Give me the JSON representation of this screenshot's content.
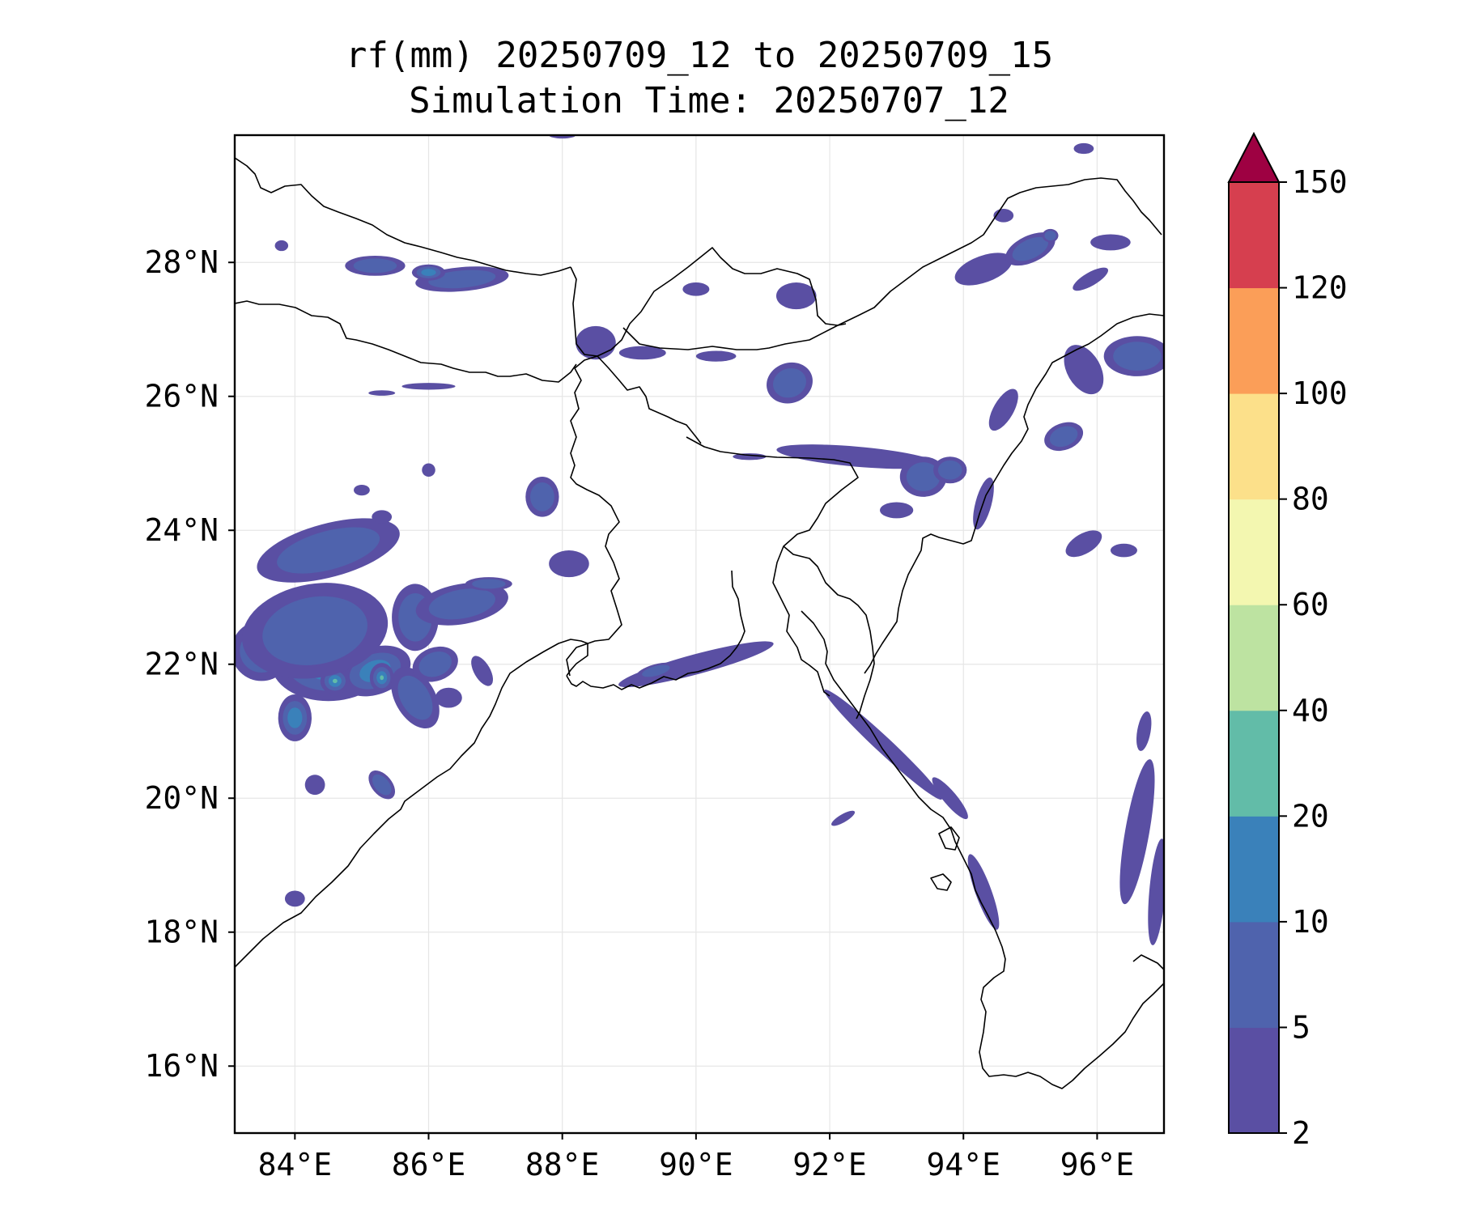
{
  "map": {
    "title_line1": "rf(mm) 20250709_12 to 20250709_15",
    "title_line2": "Simulation Time: 20250707_12",
    "lon_range": [
      83.1,
      97.0
    ],
    "lat_range": [
      15.0,
      29.9
    ],
    "lon_ticks": [
      {
        "value": 84,
        "label": "84°E"
      },
      {
        "value": 86,
        "label": "86°E"
      },
      {
        "value": 88,
        "label": "88°E"
      },
      {
        "value": 90,
        "label": "90°E"
      },
      {
        "value": 92,
        "label": "92°E"
      },
      {
        "value": 94,
        "label": "94°E"
      },
      {
        "value": 96,
        "label": "96°E"
      }
    ],
    "lat_ticks": [
      {
        "value": 16,
        "label": "16°N"
      },
      {
        "value": 18,
        "label": "18°N"
      },
      {
        "value": 20,
        "label": "20°N"
      },
      {
        "value": 22,
        "label": "22°N"
      },
      {
        "value": 24,
        "label": "24°N"
      },
      {
        "value": 26,
        "label": "26°N"
      },
      {
        "value": 28,
        "label": "28°N"
      }
    ],
    "gridlines": true,
    "colorbar": {
      "levels": [
        2,
        5,
        10,
        20,
        40,
        60,
        80,
        100,
        120,
        150
      ],
      "labels": [
        "2",
        "5",
        "10",
        "20",
        "40",
        "60",
        "80",
        "100",
        "120",
        "150"
      ],
      "colors": [
        "#5a4fa3",
        "#4f63ad",
        "#3a81ba",
        "#62bca8",
        "#bde3a1",
        "#f3f7b0",
        "#fce08a",
        "#fb9e58",
        "#d63f4f"
      ],
      "extend_color": "#9e0142",
      "extend": "max"
    },
    "rain_cells": [
      {
        "lon": 84.5,
        "lat": 22.0,
        "rx": 0.85,
        "ry": 0.55,
        "rot": 0,
        "level": 2
      },
      {
        "lon": 83.5,
        "lat": 22.2,
        "rx": 0.45,
        "ry": 0.45,
        "rot": 0,
        "level": 2
      },
      {
        "lon": 85.2,
        "lat": 21.9,
        "rx": 0.55,
        "ry": 0.35,
        "rot": -20,
        "level": 2
      },
      {
        "lon": 84.6,
        "lat": 21.75,
        "rx": 0.22,
        "ry": 0.2,
        "rot": 0,
        "level": 4
      },
      {
        "lon": 85.3,
        "lat": 21.8,
        "rx": 0.18,
        "ry": 0.22,
        "rot": 0,
        "level": 4
      },
      {
        "lon": 84.0,
        "lat": 21.2,
        "rx": 0.25,
        "ry": 0.35,
        "rot": 0,
        "level": 2
      },
      {
        "lon": 84.3,
        "lat": 22.5,
        "rx": 1.1,
        "ry": 0.7,
        "rot": -10,
        "level": 1
      },
      {
        "lon": 85.8,
        "lat": 22.7,
        "rx": 0.35,
        "ry": 0.5,
        "rot": 0,
        "level": 1
      },
      {
        "lon": 86.5,
        "lat": 22.9,
        "rx": 0.7,
        "ry": 0.3,
        "rot": -10,
        "level": 1
      },
      {
        "lon": 84.5,
        "lat": 23.7,
        "rx": 1.1,
        "ry": 0.4,
        "rot": -15,
        "level": 1
      },
      {
        "lon": 85.8,
        "lat": 21.5,
        "rx": 0.3,
        "ry": 0.5,
        "rot": -30,
        "level": 1
      },
      {
        "lon": 86.1,
        "lat": 22.0,
        "rx": 0.35,
        "ry": 0.25,
        "rot": -20,
        "level": 1
      },
      {
        "lon": 87.7,
        "lat": 24.5,
        "rx": 0.25,
        "ry": 0.3,
        "rot": 0,
        "level": 1
      },
      {
        "lon": 86.9,
        "lat": 23.2,
        "rx": 0.35,
        "ry": 0.1,
        "rot": 0,
        "level": 1
      },
      {
        "lon": 85.3,
        "lat": 20.2,
        "rx": 0.15,
        "ry": 0.25,
        "rot": -40,
        "level": 1
      },
      {
        "lon": 84.3,
        "lat": 20.2,
        "rx": 0.15,
        "ry": 0.15,
        "rot": 0,
        "level": 0
      },
      {
        "lon": 84.0,
        "lat": 18.5,
        "rx": 0.15,
        "ry": 0.12,
        "rot": 0,
        "level": 0
      },
      {
        "lon": 86.3,
        "lat": 21.5,
        "rx": 0.2,
        "ry": 0.15,
        "rot": 0,
        "level": 0
      },
      {
        "lon": 86.8,
        "lat": 21.9,
        "rx": 0.12,
        "ry": 0.25,
        "rot": -30,
        "level": 0
      },
      {
        "lon": 85.3,
        "lat": 24.2,
        "rx": 0.15,
        "ry": 0.1,
        "rot": 0,
        "level": 0
      },
      {
        "lon": 86.0,
        "lat": 24.9,
        "rx": 0.1,
        "ry": 0.1,
        "rot": 0,
        "level": 0
      },
      {
        "lon": 85.0,
        "lat": 24.6,
        "rx": 0.12,
        "ry": 0.08,
        "rot": 0,
        "level": 0
      },
      {
        "lon": 88.1,
        "lat": 23.5,
        "rx": 0.3,
        "ry": 0.2,
        "rot": 0,
        "level": 0
      },
      {
        "lon": 85.2,
        "lat": 27.95,
        "rx": 0.45,
        "ry": 0.15,
        "rot": 0,
        "level": 1
      },
      {
        "lon": 86.5,
        "lat": 27.75,
        "rx": 0.7,
        "ry": 0.18,
        "rot": -5,
        "level": 1
      },
      {
        "lon": 86.0,
        "lat": 27.85,
        "rx": 0.25,
        "ry": 0.12,
        "rot": 0,
        "level": 2
      },
      {
        "lon": 83.8,
        "lat": 28.25,
        "rx": 0.1,
        "ry": 0.08,
        "rot": 0,
        "level": 0
      },
      {
        "lon": 86.0,
        "lat": 26.15,
        "rx": 0.4,
        "ry": 0.05,
        "rot": 0,
        "level": 0
      },
      {
        "lon": 85.3,
        "lat": 26.05,
        "rx": 0.2,
        "ry": 0.04,
        "rot": 0,
        "level": 0
      },
      {
        "lon": 88.5,
        "lat": 26.8,
        "rx": 0.3,
        "ry": 0.25,
        "rot": 0,
        "level": 0
      },
      {
        "lon": 89.2,
        "lat": 26.65,
        "rx": 0.35,
        "ry": 0.1,
        "rot": 0,
        "level": 0
      },
      {
        "lon": 90.3,
        "lat": 26.6,
        "rx": 0.3,
        "ry": 0.08,
        "rot": 0,
        "level": 0
      },
      {
        "lon": 91.4,
        "lat": 26.2,
        "rx": 0.35,
        "ry": 0.3,
        "rot": -20,
        "level": 1
      },
      {
        "lon": 91.5,
        "lat": 27.5,
        "rx": 0.3,
        "ry": 0.2,
        "rot": 0,
        "level": 0
      },
      {
        "lon": 90.0,
        "lat": 27.6,
        "rx": 0.2,
        "ry": 0.1,
        "rot": 0,
        "level": 0
      },
      {
        "lon": 92.4,
        "lat": 25.1,
        "rx": 1.2,
        "ry": 0.15,
        "rot": 5,
        "level": 0
      },
      {
        "lon": 93.4,
        "lat": 24.8,
        "rx": 0.35,
        "ry": 0.3,
        "rot": 0,
        "level": 1
      },
      {
        "lon": 93.8,
        "lat": 24.9,
        "rx": 0.25,
        "ry": 0.2,
        "rot": 0,
        "level": 1
      },
      {
        "lon": 94.3,
        "lat": 24.4,
        "rx": 0.12,
        "ry": 0.4,
        "rot": 15,
        "level": 0
      },
      {
        "lon": 93.0,
        "lat": 24.3,
        "rx": 0.25,
        "ry": 0.12,
        "rot": 0,
        "level": 0
      },
      {
        "lon": 90.8,
        "lat": 25.1,
        "rx": 0.25,
        "ry": 0.05,
        "rot": 0,
        "level": 0
      },
      {
        "lon": 90.0,
        "lat": 22.0,
        "rx": 1.2,
        "ry": 0.15,
        "rot": -15,
        "level": 0
      },
      {
        "lon": 89.4,
        "lat": 21.9,
        "rx": 0.3,
        "ry": 0.1,
        "rot": -15,
        "level": 1
      },
      {
        "lon": 92.8,
        "lat": 20.8,
        "rx": 1.2,
        "ry": 0.12,
        "rot": 43,
        "level": 0
      },
      {
        "lon": 93.8,
        "lat": 20.0,
        "rx": 0.4,
        "ry": 0.1,
        "rot": 50,
        "level": 0
      },
      {
        "lon": 94.3,
        "lat": 18.6,
        "rx": 0.6,
        "ry": 0.12,
        "rot": 70,
        "level": 0
      },
      {
        "lon": 92.2,
        "lat": 19.7,
        "rx": 0.2,
        "ry": 0.06,
        "rot": -30,
        "level": 0
      },
      {
        "lon": 94.3,
        "lat": 27.9,
        "rx": 0.45,
        "ry": 0.2,
        "rot": -20,
        "level": 0
      },
      {
        "lon": 95.0,
        "lat": 28.2,
        "rx": 0.4,
        "ry": 0.2,
        "rot": -25,
        "level": 1
      },
      {
        "lon": 94.6,
        "lat": 28.7,
        "rx": 0.15,
        "ry": 0.1,
        "rot": 0,
        "level": 0
      },
      {
        "lon": 95.3,
        "lat": 28.4,
        "rx": 0.12,
        "ry": 0.1,
        "rot": 0,
        "level": 1
      },
      {
        "lon": 95.9,
        "lat": 27.75,
        "rx": 0.3,
        "ry": 0.1,
        "rot": -30,
        "level": 0
      },
      {
        "lon": 96.2,
        "lat": 28.3,
        "rx": 0.3,
        "ry": 0.12,
        "rot": 0,
        "level": 0
      },
      {
        "lon": 96.6,
        "lat": 26.6,
        "rx": 0.5,
        "ry": 0.3,
        "rot": 0,
        "level": 1
      },
      {
        "lon": 95.8,
        "lat": 26.4,
        "rx": 0.25,
        "ry": 0.4,
        "rot": -30,
        "level": 0
      },
      {
        "lon": 95.5,
        "lat": 25.4,
        "rx": 0.3,
        "ry": 0.2,
        "rot": -20,
        "level": 1
      },
      {
        "lon": 94.6,
        "lat": 25.8,
        "rx": 0.15,
        "ry": 0.35,
        "rot": 30,
        "level": 0
      },
      {
        "lon": 95.8,
        "lat": 23.8,
        "rx": 0.3,
        "ry": 0.15,
        "rot": -30,
        "level": 0
      },
      {
        "lon": 96.4,
        "lat": 23.7,
        "rx": 0.2,
        "ry": 0.1,
        "rot": 0,
        "level": 0
      },
      {
        "lon": 96.6,
        "lat": 19.5,
        "rx": 1.1,
        "ry": 0.18,
        "rot": -80,
        "level": 0
      },
      {
        "lon": 96.9,
        "lat": 18.6,
        "rx": 0.8,
        "ry": 0.12,
        "rot": -85,
        "level": 0
      },
      {
        "lon": 96.7,
        "lat": 21.0,
        "rx": 0.3,
        "ry": 0.1,
        "rot": -80,
        "level": 0
      },
      {
        "lon": 95.8,
        "lat": 29.7,
        "rx": 0.15,
        "ry": 0.08,
        "rot": 0,
        "level": 0
      },
      {
        "lon": 88.0,
        "lat": 29.9,
        "rx": 0.2,
        "ry": 0.05,
        "rot": 0,
        "level": 0
      }
    ]
  }
}
